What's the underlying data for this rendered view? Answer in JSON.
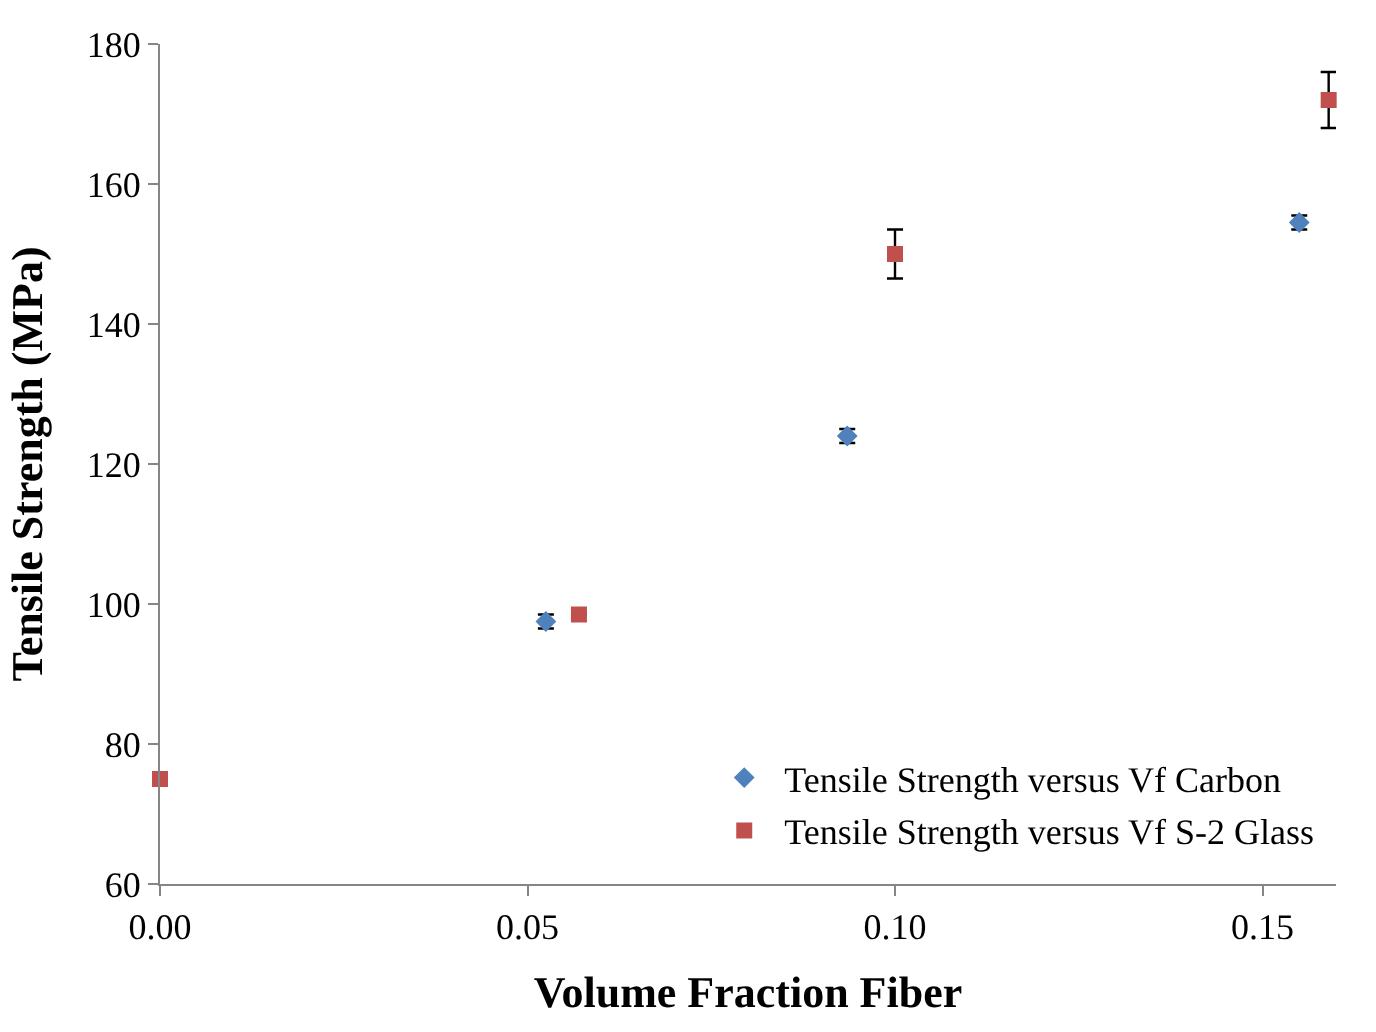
{
  "chart_data": {
    "type": "scatter",
    "xlabel": "Volume Fraction Fiber",
    "ylabel": "Tensile Strength (MPa)",
    "xlim": [
      0,
      0.16
    ],
    "xticks": [
      {
        "value": 0,
        "label": "0.00"
      },
      {
        "value": 0.05,
        "label": "0.05"
      },
      {
        "value": 0.1,
        "label": "0.10"
      },
      {
        "value": 0.15,
        "label": "0.15"
      }
    ],
    "ylim": [
      60,
      180
    ],
    "yticks": [
      60,
      80,
      100,
      120,
      140,
      160,
      180
    ],
    "grid": false,
    "legend": "bottom right",
    "series": [
      {
        "name": "Tensile Strength versus Vf Carbon",
        "color": "#4f81bd",
        "marker": "diamond",
        "x": [
          0.0525,
          0.0935,
          0.155
        ],
        "values": [
          97.5,
          124,
          154.5
        ],
        "errors": [
          1,
          1,
          1
        ]
      },
      {
        "name": "Tensile Strength versus Vf S-2 Glass",
        "color": "#c0504d",
        "marker": "square",
        "x": [
          0,
          0.057,
          0.1,
          0.159
        ],
        "values": [
          75,
          98.5,
          150,
          172
        ],
        "errors": [
          null,
          null,
          3.5,
          4
        ]
      }
    ]
  }
}
